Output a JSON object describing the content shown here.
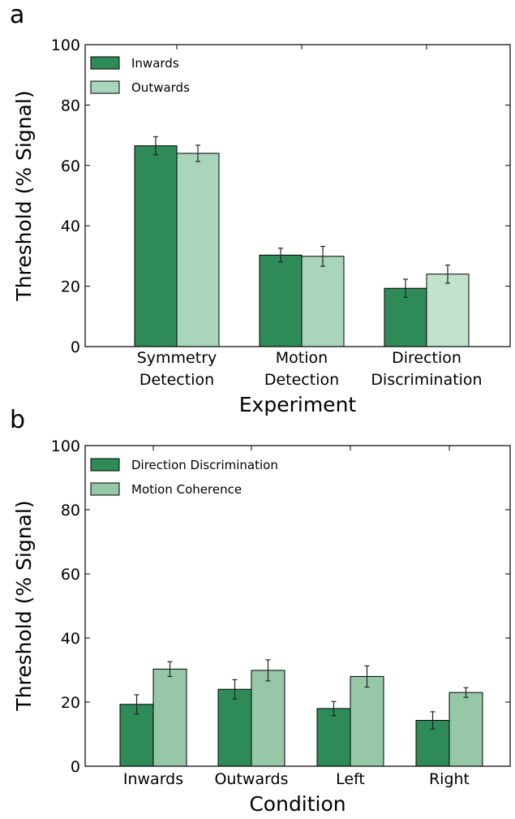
{
  "chart_data": [
    {
      "type": "bar",
      "panel_label": "a",
      "categories": [
        [
          "Symmetry",
          "Detection"
        ],
        [
          "Motion",
          "Detection"
        ],
        [
          "Direction",
          "Discrimination"
        ]
      ],
      "series": [
        {
          "name": "Inwards",
          "values": [
            66.5,
            30.3,
            19.3
          ],
          "errors": [
            3.0,
            2.3,
            3.0
          ]
        },
        {
          "name": "Outwards",
          "values": [
            64.0,
            29.9,
            24.0
          ],
          "errors": [
            2.7,
            3.3,
            3.0
          ]
        }
      ],
      "series_colors": [
        "#2e8b57",
        "#a8d5bb"
      ],
      "bar_colors": [
        [
          "#2e8b57",
          "#2e8b57",
          "#2e8b57"
        ],
        [
          "#a8d5bb",
          "#a8d5bb",
          "#c3e2cd"
        ]
      ],
      "xlabel": "Experiment",
      "ylabel": "Threshold (% Signal)",
      "ylim": [
        0,
        100
      ],
      "yticks": [
        "0",
        "20",
        "40",
        "60",
        "80",
        "100"
      ],
      "grid": false,
      "legend": "top-left"
    },
    {
      "type": "bar",
      "panel_label": "b",
      "categories": [
        [
          "Inwards"
        ],
        [
          "Outwards"
        ],
        [
          "Left"
        ],
        [
          "Right"
        ]
      ],
      "series": [
        {
          "name": "Direction Discrimination",
          "values": [
            19.3,
            24.0,
            18.0,
            14.3
          ],
          "errors": [
            3.0,
            3.0,
            2.2,
            2.7
          ]
        },
        {
          "name": "Motion Coherence",
          "values": [
            30.3,
            29.9,
            28.0,
            23.0
          ],
          "errors": [
            2.3,
            3.3,
            3.3,
            1.5
          ]
        }
      ],
      "series_colors": [
        "#2e8b57",
        "#96c8a8"
      ],
      "bar_colors": [
        [
          "#2e8b57",
          "#2e8b57",
          "#2e8b57",
          "#2e8b57"
        ],
        [
          "#96c8a8",
          "#96c8a8",
          "#96c8a8",
          "#96c8a8"
        ]
      ],
      "xlabel": "Condition",
      "ylabel": "Threshold (% Signal)",
      "ylim": [
        0,
        100
      ],
      "yticks": [
        "0",
        "20",
        "40",
        "60",
        "80",
        "100"
      ],
      "grid": false,
      "legend": "top-left"
    }
  ]
}
